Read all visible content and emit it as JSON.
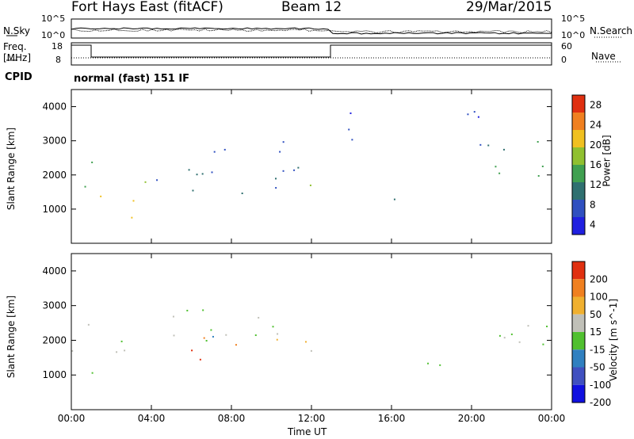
{
  "header": {
    "station": "Fort Hays East (fitACF)",
    "beam": "Beam 12",
    "date": "29/Mar/2015"
  },
  "top_panel": {
    "left_label": "N.Sky",
    "right_label": "N.Search",
    "left_ticks": [
      "10^5",
      "10^0"
    ],
    "right_ticks": [
      "10^5",
      "10^0"
    ]
  },
  "freq_panel": {
    "left_label": "Freq.",
    "left_unit": "[MHz]",
    "right_label": "Nave",
    "left_ticks": [
      "18",
      "8"
    ],
    "right_ticks": [
      "60",
      "0"
    ]
  },
  "cpid": {
    "label": "CPID",
    "value": "normal (fast) 151 IF"
  },
  "time_axis": {
    "label": "Time UT",
    "ticks": [
      "00:00",
      "04:00",
      "08:00",
      "12:00",
      "16:00",
      "20:00",
      "00:00"
    ]
  },
  "chart_data": [
    {
      "type": "heatmap",
      "title": "",
      "xlabel": "Time UT",
      "ylabel": "Slant Range [km]",
      "xlim": [
        0,
        24
      ],
      "ylim": [
        0,
        4500
      ],
      "y_ticks": [
        "4000",
        "3000",
        "2000",
        "1000"
      ],
      "colorbar": {
        "label": "Power [dB]",
        "ticks": [
          "28",
          "24",
          "20",
          "16",
          "12",
          "8",
          "4"
        ],
        "colors": [
          "#2020e0",
          "#3050c0",
          "#307070",
          "#40a050",
          "#90c030",
          "#f0c020",
          "#f08020",
          "#e03010"
        ],
        "range": [
          0,
          30
        ]
      },
      "regions": [
        {
          "t0": 0.0,
          "t1": 1.0,
          "r0": 1100,
          "r1": 3000,
          "level": 12
        },
        {
          "t0": 1.0,
          "t1": 3.5,
          "r0": 600,
          "r1": 1500,
          "level": 20
        },
        {
          "t0": 3.5,
          "t1": 4.2,
          "r0": 1500,
          "r1": 3000,
          "level": 16
        },
        {
          "t0": 4.2,
          "t1": 11.5,
          "r0": 1300,
          "r1": 3300,
          "level": 8
        },
        {
          "t0": 11.5,
          "t1": 12.5,
          "r0": 1500,
          "r1": 2500,
          "level": 14
        },
        {
          "t0": 13.0,
          "t1": 19.5,
          "r0": 1200,
          "r1": 1400,
          "level": 6
        },
        {
          "t0": 13.0,
          "t1": 14.5,
          "r0": 2500,
          "r1": 4400,
          "level": 4
        },
        {
          "t0": 18.5,
          "t1": 20.5,
          "r0": 2500,
          "r1": 4500,
          "level": 6
        },
        {
          "t0": 20.5,
          "t1": 24.0,
          "r0": 1300,
          "r1": 3000,
          "level": 12
        }
      ]
    },
    {
      "type": "heatmap",
      "title": "",
      "xlabel": "Time UT",
      "ylabel": "Slant Range [km]",
      "xlim": [
        0,
        24
      ],
      "ylim": [
        0,
        4500
      ],
      "y_ticks": [
        "4000",
        "3000",
        "2000",
        "1000"
      ],
      "colorbar": {
        "label": "Velocity [m s^-1]",
        "ticks": [
          "200",
          "100",
          "50",
          "15",
          "-15",
          "-50",
          "-100",
          "-200"
        ],
        "colors": [
          "#1010e0",
          "#4050c0",
          "#3080c0",
          "#50c030",
          "#c0c0b8",
          "#f0b030",
          "#f08020",
          "#e03010"
        ],
        "range": [
          -250,
          250
        ]
      },
      "regions": [
        {
          "t0": 0.0,
          "t1": 1.0,
          "r0": 1200,
          "r1": 2800,
          "level": -10
        },
        {
          "t0": 1.0,
          "t1": 3.5,
          "r0": 700,
          "r1": 2200,
          "level": -5
        },
        {
          "t0": 4.2,
          "t1": 11.5,
          "r0": 2000,
          "r1": 3300,
          "level": -20
        },
        {
          "t0": 5.0,
          "t1": 9.5,
          "r0": 1400,
          "r1": 2100,
          "level": 200
        },
        {
          "t0": 9.5,
          "t1": 12.5,
          "r0": 1400,
          "r1": 2500,
          "level": 50
        },
        {
          "t0": 13.0,
          "t1": 20.0,
          "r0": 1300,
          "r1": 1500,
          "level": 0
        },
        {
          "t0": 20.0,
          "t1": 24.0,
          "r0": 1500,
          "r1": 3000,
          "level": 0
        }
      ]
    }
  ]
}
